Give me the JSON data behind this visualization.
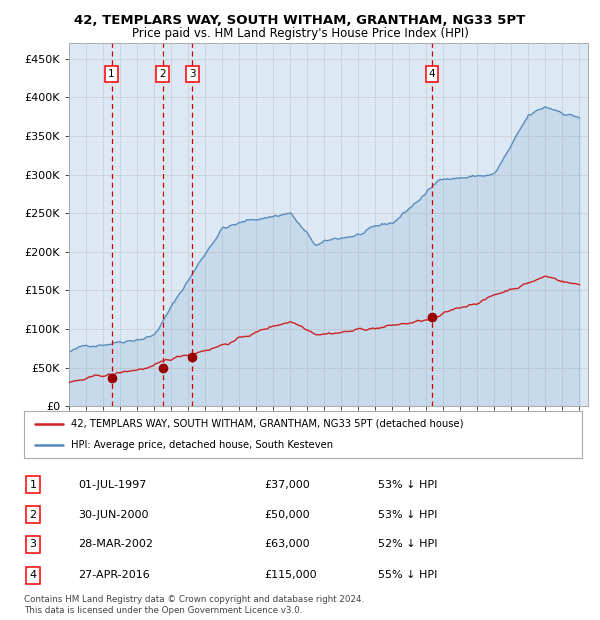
{
  "title": "42, TEMPLARS WAY, SOUTH WITHAM, GRANTHAM, NG33 5PT",
  "subtitle": "Price paid vs. HM Land Registry's House Price Index (HPI)",
  "background_color": "#ffffff",
  "plot_bg_color": "#dce9f5",
  "legend_line1": "42, TEMPLARS WAY, SOUTH WITHAM, GRANTHAM, NG33 5PT (detached house)",
  "legend_line2": "HPI: Average price, detached house, South Kesteven",
  "footer_line1": "Contains HM Land Registry data © Crown copyright and database right 2024.",
  "footer_line2": "This data is licensed under the Open Government Licence v3.0.",
  "transactions": [
    {
      "num": 1,
      "date": "01-JUL-1997",
      "price": 37000,
      "pct": "53% ↓ HPI",
      "year": 1997.5
    },
    {
      "num": 2,
      "date": "30-JUN-2000",
      "price": 50000,
      "pct": "53% ↓ HPI",
      "year": 2000.5
    },
    {
      "num": 3,
      "date": "28-MAR-2002",
      "price": 63000,
      "pct": "52% ↓ HPI",
      "year": 2002.25
    },
    {
      "num": 4,
      "date": "27-APR-2016",
      "price": 115000,
      "pct": "55% ↓ HPI",
      "year": 2016.33
    }
  ],
  "hpi_color": "#5588bb",
  "price_color": "#cc2222",
  "marker_color": "#990000",
  "vline_color": "#cc0000",
  "grid_color": "#cccccc",
  "ylim": [
    0,
    470000
  ],
  "xlim_start": 1995.0,
  "xlim_end": 2025.5,
  "yticks": [
    0,
    50000,
    100000,
    150000,
    200000,
    250000,
    300000,
    350000,
    400000,
    450000
  ],
  "ytick_labels": [
    "£0",
    "£50K",
    "£100K",
    "£150K",
    "£200K",
    "£250K",
    "£300K",
    "£350K",
    "£400K",
    "£450K"
  ],
  "xticks": [
    1995,
    1996,
    1997,
    1998,
    1999,
    2000,
    2001,
    2002,
    2003,
    2004,
    2005,
    2006,
    2007,
    2008,
    2009,
    2010,
    2011,
    2012,
    2013,
    2014,
    2015,
    2016,
    2017,
    2018,
    2019,
    2020,
    2021,
    2022,
    2023,
    2024,
    2025
  ]
}
